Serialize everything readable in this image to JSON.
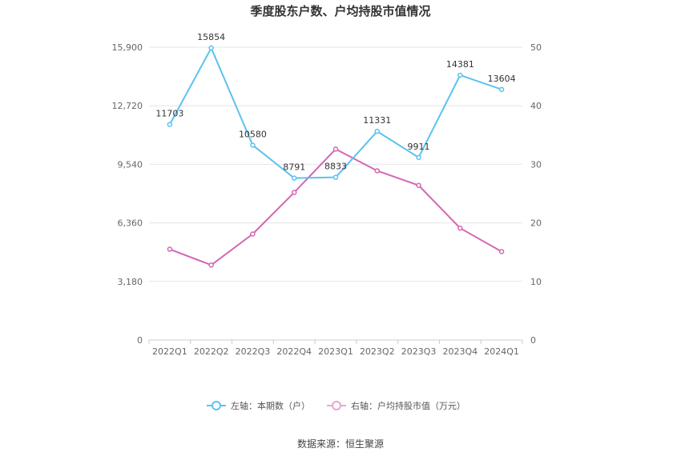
{
  "chart_data": {
    "type": "line",
    "title": "季度股东户数、户均持股市值情况",
    "categories": [
      "2022Q1",
      "2022Q2",
      "2022Q3",
      "2022Q4",
      "2023Q1",
      "2023Q2",
      "2023Q3",
      "2023Q4",
      "2024Q1"
    ],
    "left_axis": {
      "ticks": [
        "0",
        "3,180",
        "6,360",
        "9,540",
        "12,720",
        "15,900"
      ],
      "ylim": [
        0,
        15900
      ]
    },
    "right_axis": {
      "ticks": [
        "0",
        "10",
        "20",
        "30",
        "40",
        "50"
      ],
      "ylim": [
        0,
        50
      ]
    },
    "series": [
      {
        "name": "左轴：本期数（户）",
        "axis": "left",
        "color": "#5bc2ee",
        "values": [
          11703,
          15854,
          10580,
          8791,
          8833,
          11331,
          9911,
          14381,
          13604
        ],
        "labels": [
          "11703",
          "15854",
          "10580",
          "8791",
          "8833",
          "11331",
          "9911",
          "14381",
          "13604"
        ]
      },
      {
        "name": "右轴：户均持股市值（万元）",
        "axis": "right",
        "color": "#d467b4",
        "legend_color": "#e8a6d4",
        "values": [
          15.5,
          12.8,
          18.1,
          25.2,
          32.6,
          28.9,
          26.4,
          19.1,
          15.1
        ]
      }
    ],
    "grid": true,
    "legend_position": "bottom"
  },
  "source": "数据来源：恒生聚源"
}
